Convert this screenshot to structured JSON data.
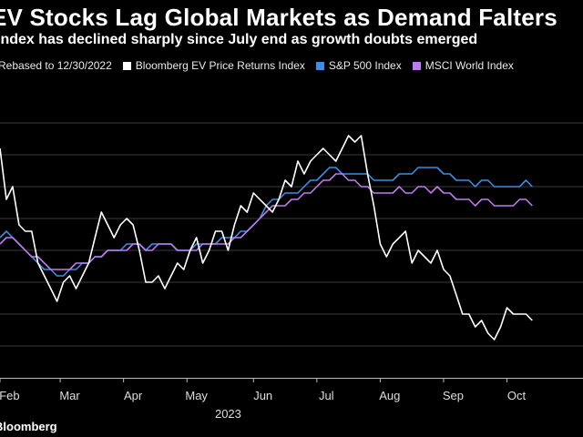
{
  "header": {
    "title": "EV Stocks Lag Global Markets as Demand Falters",
    "subtitle": "Index has declined sharply since July end as growth doubts emerged"
  },
  "legend": {
    "note": "Rebased to 12/30/2022"
  },
  "footer": {
    "source": "Bloomberg"
  },
  "colors": {
    "ev": "#ffffff",
    "sp500": "#3a8ee6",
    "msci": "#c07af0",
    "grid": "#3a3a3a",
    "background": "#000000"
  },
  "chart_data": {
    "type": "line",
    "title": "EV Stocks Lag Global Markets as Demand Falters",
    "x_range": [
      0,
      9.2
    ],
    "ylim": [
      90,
      135
    ],
    "grid_values": [
      95,
      100,
      105,
      110,
      115,
      120,
      125,
      130
    ],
    "x_ticks": [
      {
        "label": "Feb",
        "x": 0.15
      },
      {
        "label": "Mar",
        "x": 1.1
      },
      {
        "label": "Apr",
        "x": 2.1
      },
      {
        "label": "May",
        "x": 3.1
      },
      {
        "label": "Jun",
        "x": 4.15
      },
      {
        "label": "Jul",
        "x": 5.15
      },
      {
        "label": "Aug",
        "x": 6.15
      },
      {
        "label": "Sep",
        "x": 7.15
      },
      {
        "label": "Oct",
        "x": 8.15
      }
    ],
    "year_label": {
      "label": "2023",
      "x": 3.6
    },
    "series": [
      {
        "name": "Bloomberg EV Price Returns Index",
        "key": "ev",
        "x": [
          0,
          0.1,
          0.2,
          0.3,
          0.4,
          0.5,
          0.6,
          0.7,
          0.8,
          0.9,
          1.0,
          1.1,
          1.2,
          1.3,
          1.4,
          1.5,
          1.6,
          1.7,
          1.8,
          1.9,
          2.0,
          2.1,
          2.2,
          2.3,
          2.4,
          2.5,
          2.6,
          2.7,
          2.8,
          2.9,
          3.0,
          3.1,
          3.2,
          3.3,
          3.4,
          3.5,
          3.6,
          3.7,
          3.8,
          3.9,
          4.0,
          4.1,
          4.2,
          4.3,
          4.4,
          4.5,
          4.6,
          4.7,
          4.8,
          4.9,
          5.0,
          5.1,
          5.2,
          5.3,
          5.4,
          5.5,
          5.6,
          5.7,
          5.8,
          5.9,
          6.0,
          6.1,
          6.2,
          6.3,
          6.4,
          6.5,
          6.6,
          6.7,
          6.8,
          6.9,
          7.0,
          7.1,
          7.2,
          7.3,
          7.4,
          7.5,
          7.6,
          7.7,
          7.8,
          7.9,
          8.0,
          8.1,
          8.2,
          8.3,
          8.4
        ],
        "values": [
          126,
          118,
          120,
          114,
          113,
          113,
          108,
          106,
          104,
          102,
          105,
          106,
          104,
          106,
          108,
          112,
          116,
          114,
          112,
          114,
          115,
          114,
          110,
          105,
          105,
          106,
          104,
          106,
          108,
          107,
          110,
          112,
          108,
          110,
          113,
          113,
          110,
          114,
          117,
          116,
          119,
          118,
          117,
          116,
          118,
          121,
          120,
          124,
          122,
          124,
          125,
          126,
          125,
          124,
          126,
          128,
          127,
          128,
          122,
          117,
          111,
          109,
          111,
          112,
          113,
          108,
          110,
          109,
          108,
          110,
          107,
          106,
          103,
          100,
          100,
          98,
          99,
          97,
          96,
          98,
          101,
          100,
          100,
          100,
          99
        ]
      },
      {
        "name": "S&P 500 Index",
        "key": "sp500",
        "x": [
          0,
          0.1,
          0.2,
          0.3,
          0.4,
          0.5,
          0.6,
          0.7,
          0.8,
          0.9,
          1.0,
          1.1,
          1.2,
          1.3,
          1.4,
          1.5,
          1.6,
          1.7,
          1.8,
          1.9,
          2.0,
          2.1,
          2.2,
          2.3,
          2.4,
          2.5,
          2.6,
          2.7,
          2.8,
          2.9,
          3.0,
          3.1,
          3.2,
          3.3,
          3.4,
          3.5,
          3.6,
          3.7,
          3.8,
          3.9,
          4.0,
          4.1,
          4.2,
          4.3,
          4.4,
          4.5,
          4.6,
          4.7,
          4.8,
          4.9,
          5.0,
          5.1,
          5.2,
          5.3,
          5.4,
          5.5,
          5.6,
          5.7,
          5.8,
          5.9,
          6.0,
          6.1,
          6.2,
          6.3,
          6.4,
          6.5,
          6.6,
          6.7,
          6.8,
          6.9,
          7.0,
          7.1,
          7.2,
          7.3,
          7.4,
          7.5,
          7.6,
          7.7,
          7.8,
          7.9,
          8.0,
          8.1,
          8.2,
          8.3,
          8.4
        ],
        "values": [
          112,
          113,
          112,
          111,
          110,
          109,
          108,
          107,
          107,
          106,
          106,
          107,
          107,
          108,
          108,
          109,
          109,
          110,
          110,
          110,
          111,
          111,
          111,
          110,
          111,
          111,
          111,
          111,
          110,
          110,
          110,
          111,
          111,
          111,
          111,
          112,
          112,
          112,
          113,
          113,
          114,
          115,
          117,
          118,
          118,
          119,
          119,
          119,
          120,
          121,
          121,
          122,
          123,
          123,
          122,
          122,
          122,
          122,
          122,
          121,
          121,
          121,
          121,
          122,
          122,
          122,
          123,
          123,
          123,
          123,
          122,
          122,
          121,
          121,
          121,
          120,
          121,
          121,
          120,
          120,
          120,
          120,
          120,
          121,
          120
        ]
      },
      {
        "name": "MSCI World Index",
        "key": "msci",
        "x": [
          0,
          0.1,
          0.2,
          0.3,
          0.4,
          0.5,
          0.6,
          0.7,
          0.8,
          0.9,
          1.0,
          1.1,
          1.2,
          1.3,
          1.4,
          1.5,
          1.6,
          1.7,
          1.8,
          1.9,
          2.0,
          2.1,
          2.2,
          2.3,
          2.4,
          2.5,
          2.6,
          2.7,
          2.8,
          2.9,
          3.0,
          3.1,
          3.2,
          3.3,
          3.4,
          3.5,
          3.6,
          3.7,
          3.8,
          3.9,
          4.0,
          4.1,
          4.2,
          4.3,
          4.4,
          4.5,
          4.6,
          4.7,
          4.8,
          4.9,
          5.0,
          5.1,
          5.2,
          5.3,
          5.4,
          5.5,
          5.6,
          5.7,
          5.8,
          5.9,
          6.0,
          6.1,
          6.2,
          6.3,
          6.4,
          6.5,
          6.6,
          6.7,
          6.8,
          6.9,
          7.0,
          7.1,
          7.2,
          7.3,
          7.4,
          7.5,
          7.6,
          7.7,
          7.8,
          7.9,
          8.0,
          8.1,
          8.2,
          8.3,
          8.4
        ],
        "values": [
          111,
          112,
          112,
          111,
          110,
          109,
          109,
          108,
          107,
          107,
          107,
          107,
          108,
          108,
          108,
          109,
          109,
          110,
          110,
          110,
          110,
          111,
          111,
          110,
          110,
          111,
          111,
          111,
          110,
          110,
          110,
          110,
          111,
          111,
          111,
          111,
          111,
          112,
          112,
          113,
          114,
          115,
          116,
          117,
          117,
          117,
          118,
          118,
          119,
          119,
          120,
          121,
          121,
          122,
          122,
          121,
          121,
          120,
          120,
          119,
          119,
          119,
          119,
          120,
          119,
          119,
          120,
          120,
          119,
          120,
          119,
          119,
          118,
          118,
          118,
          117,
          118,
          118,
          117,
          117,
          117,
          117,
          118,
          118,
          117
        ]
      }
    ]
  }
}
